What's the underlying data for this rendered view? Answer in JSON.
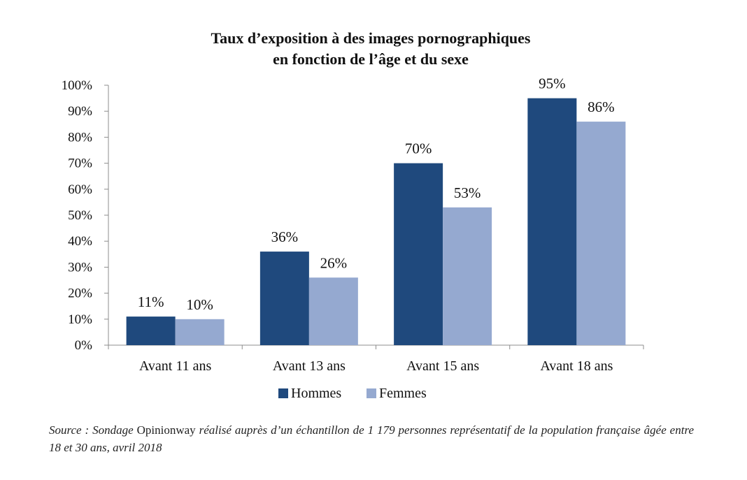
{
  "chart_data": {
    "type": "bar",
    "title_lines": [
      "Taux d’exposition à des images pornographiques",
      "en fonction de l’âge et du sexe"
    ],
    "categories": [
      "Avant 11 ans",
      "Avant 13 ans",
      "Avant 15 ans",
      "Avant 18 ans"
    ],
    "series": [
      {
        "name": "Hommes",
        "color": "#1f497d",
        "values": [
          11,
          36,
          70,
          95
        ],
        "value_labels": [
          "11%",
          "36%",
          "70%",
          "95%"
        ]
      },
      {
        "name": "Femmes",
        "color": "#95a9d0",
        "values": [
          10,
          26,
          53,
          86
        ],
        "value_labels": [
          "10%",
          "26%",
          "53%",
          "86%"
        ]
      }
    ],
    "ylim": [
      0,
      100
    ],
    "y_ticks": [
      0,
      10,
      20,
      30,
      40,
      50,
      60,
      70,
      80,
      90,
      100
    ],
    "y_tick_labels": [
      "0%",
      "10%",
      "20%",
      "30%",
      "40%",
      "50%",
      "60%",
      "70%",
      "80%",
      "90%",
      "100%"
    ],
    "xlabel": "",
    "ylabel": "",
    "grid": false,
    "legend_position": "bottom-center",
    "axis_color": "#8c8c8c"
  },
  "source": {
    "prefix": "Source : Sondage ",
    "brand": "Opinionway",
    "suffix": " réalisé auprès d’un échantillon de 1 179 personnes représentatif de la population française âgée entre 18 et 30 ans, avril 2018"
  }
}
